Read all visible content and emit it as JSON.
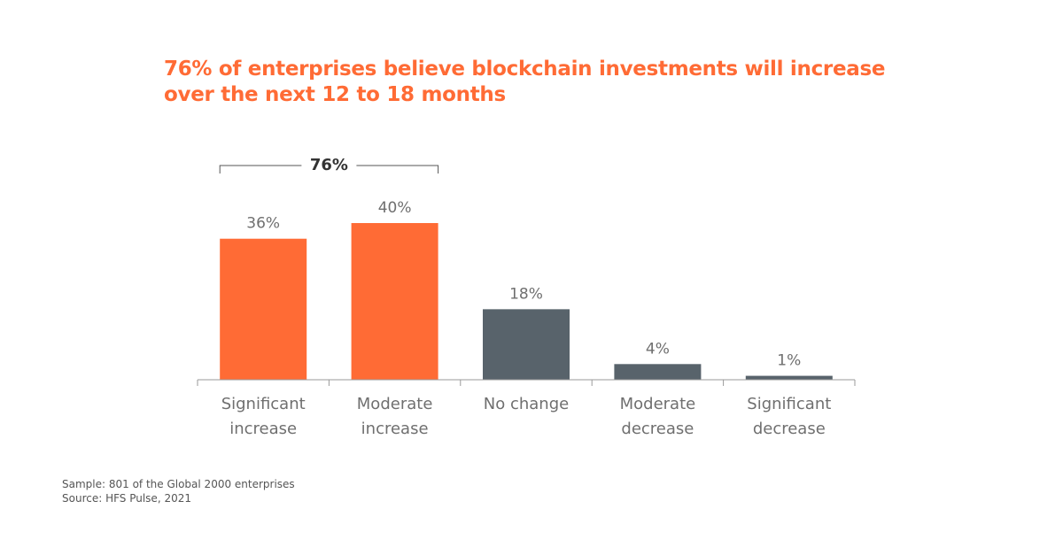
{
  "title": {
    "line1": "76% of enterprises believe blockchain investments will increase",
    "line2": "over the next 12 to 18 months"
  },
  "colors": {
    "title": "#ff6b35",
    "increase": "#ff6b35",
    "other": "#58636b",
    "label": "#6f6f6f",
    "axis": "#9a9a9a",
    "bracket_text": "#333333"
  },
  "chart_data": {
    "type": "bar",
    "categories": [
      [
        "Significant",
        "increase"
      ],
      [
        "Moderate",
        "increase"
      ],
      [
        "No change"
      ],
      [
        "Moderate",
        "decrease"
      ],
      [
        "Significant",
        "decrease"
      ]
    ],
    "values": [
      36,
      40,
      18,
      4,
      1
    ],
    "value_labels": [
      "36%",
      "40%",
      "18%",
      "4%",
      "1%"
    ],
    "bar_color_keys": [
      "increase",
      "increase",
      "other",
      "other",
      "other"
    ],
    "ylim": [
      0,
      40
    ],
    "grid": false,
    "bracket": {
      "label": "76%",
      "spans_categories": [
        0,
        1
      ]
    }
  },
  "footnotes": {
    "sample": "Sample: 801 of the Global 2000 enterprises",
    "source": "Source: HFS Pulse, 2021"
  }
}
